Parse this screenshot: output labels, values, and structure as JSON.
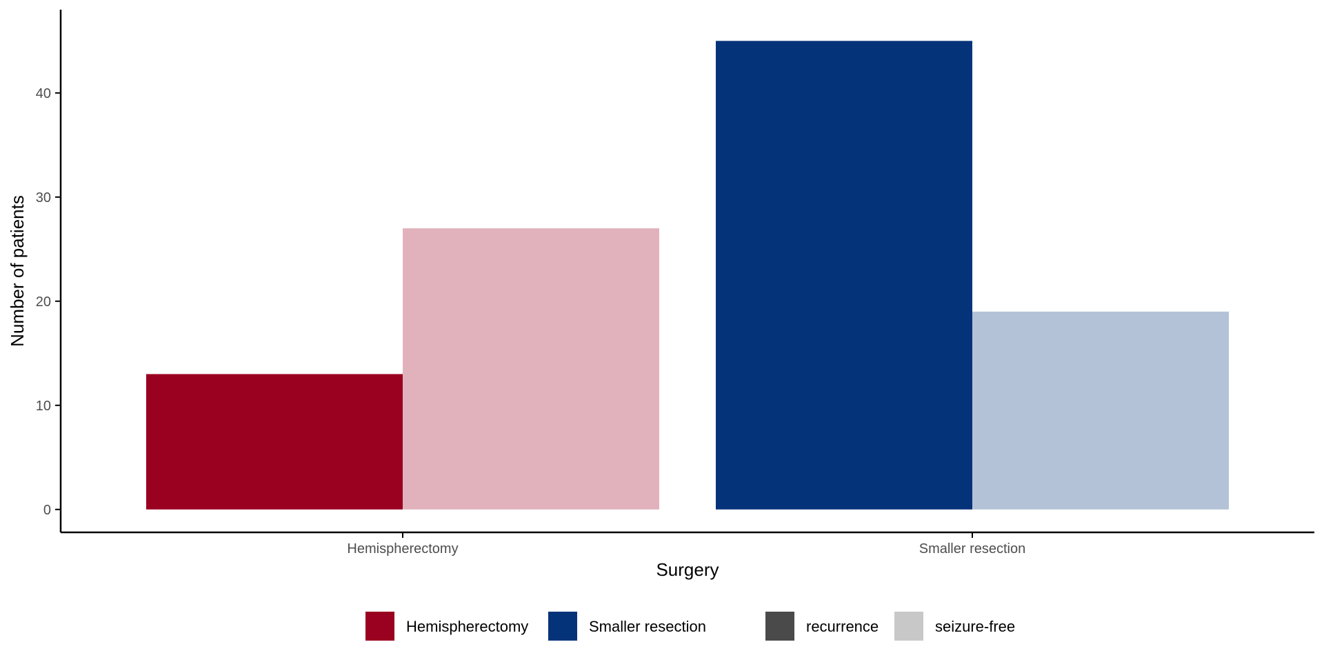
{
  "chart_data": {
    "type": "bar",
    "xlabel": "Surgery",
    "ylabel": "Number of patients",
    "ylim": [
      -2.2,
      48
    ],
    "y_ticks": [
      "0",
      "10",
      "20",
      "30",
      "40"
    ],
    "categories": [
      "Hemispherectomy",
      "Smaller resection"
    ],
    "bars": [
      {
        "category": "Hemispherectomy",
        "outcome": "recurrence",
        "value": 13,
        "color": "#9a0020"
      },
      {
        "category": "Hemispherectomy",
        "outcome": "seizure-free",
        "value": 27,
        "color": "#e1b2bc"
      },
      {
        "category": "Smaller resection",
        "outcome": "recurrence",
        "value": 45,
        "color": "#053379"
      },
      {
        "category": "Smaller resection",
        "outcome": "seizure-free",
        "value": 19,
        "color": "#b4c2d7"
      }
    ],
    "grid": false,
    "legend_position": "bottom",
    "legend": [
      {
        "label": "Hemispherectomy",
        "color": "#9a0020"
      },
      {
        "label": "Smaller resection",
        "color": "#053379"
      },
      {
        "label": "recurrence",
        "color": "#4a4a4a"
      },
      {
        "label": "seizure-free",
        "color": "#c8c8c8"
      }
    ]
  }
}
